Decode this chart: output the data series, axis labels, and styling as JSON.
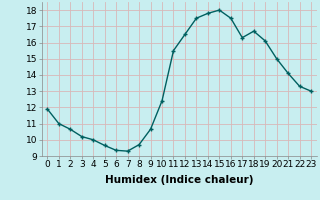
{
  "x": [
    0,
    1,
    2,
    3,
    4,
    5,
    6,
    7,
    8,
    9,
    10,
    11,
    12,
    13,
    14,
    15,
    16,
    17,
    18,
    19,
    20,
    21,
    22,
    23
  ],
  "y": [
    11.9,
    11.0,
    10.65,
    10.2,
    10.0,
    9.65,
    9.35,
    9.3,
    9.7,
    10.65,
    12.4,
    15.5,
    16.5,
    17.5,
    17.8,
    18.0,
    17.5,
    16.3,
    16.7,
    16.1,
    15.0,
    14.1,
    13.3,
    13.0
  ],
  "line_color": "#006060",
  "marker": "+",
  "marker_size": 3,
  "background_color": "#c8eef0",
  "grid_color": "#d8b8b8",
  "xlabel": "Humidex (Indice chaleur)",
  "ylim": [
    9,
    18.5
  ],
  "xlim": [
    -0.5,
    23.5
  ],
  "yticks": [
    9,
    10,
    11,
    12,
    13,
    14,
    15,
    16,
    17,
    18
  ],
  "xticks": [
    0,
    1,
    2,
    3,
    4,
    5,
    6,
    7,
    8,
    9,
    10,
    11,
    12,
    13,
    14,
    15,
    16,
    17,
    18,
    19,
    20,
    21,
    22,
    23
  ],
  "xtick_labels": [
    "0",
    "1",
    "2",
    "3",
    "4",
    "5",
    "6",
    "7",
    "8",
    "9",
    "10",
    "11",
    "12",
    "13",
    "14",
    "15",
    "16",
    "17",
    "18",
    "19",
    "20",
    "21",
    "22",
    "23"
  ],
  "font_size": 6.5,
  "xlabel_font_size": 7.5,
  "line_width": 1.0,
  "marker_edge_width": 1.0
}
